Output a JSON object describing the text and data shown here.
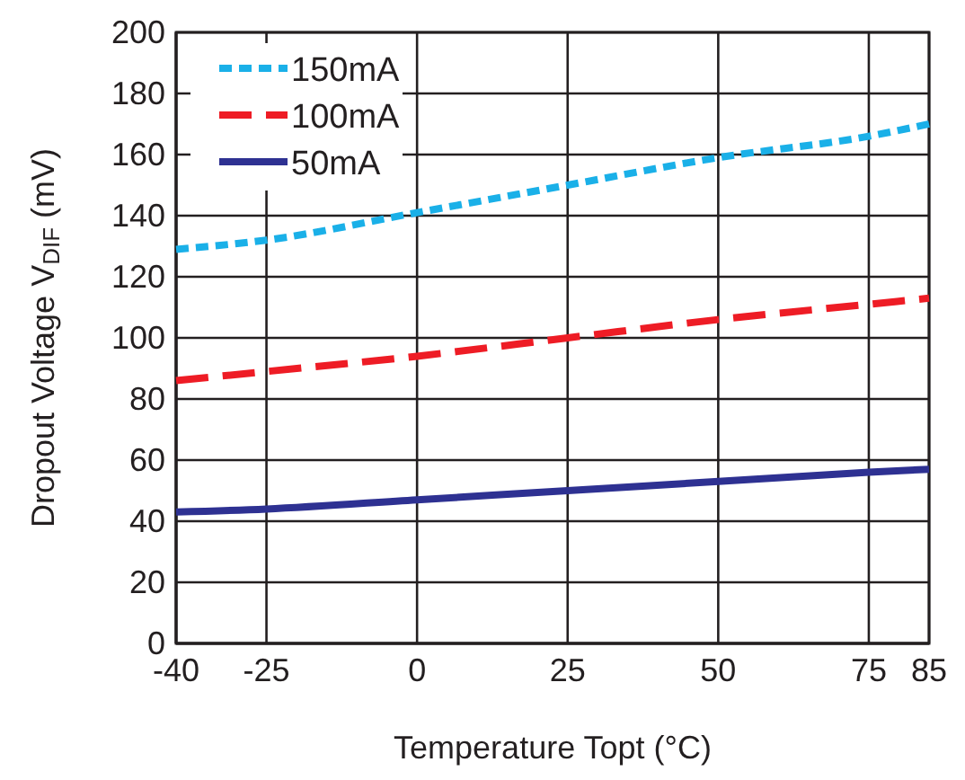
{
  "chart_data": {
    "type": "line",
    "xlabel": "Temperature Topt (°C)",
    "ylabel": "Dropout Voltage V$_{DIF}$ (mV)",
    "x": [
      -40,
      -25,
      0,
      25,
      50,
      75,
      85
    ],
    "series": [
      {
        "name": "150mA",
        "color": "#1ab0e8",
        "line_style": "dotted",
        "values": [
          129,
          132,
          141,
          150,
          159,
          166,
          170
        ]
      },
      {
        "name": "100mA",
        "color": "#ee1c25",
        "line_style": "dashed",
        "values": [
          86,
          89,
          94,
          100,
          106,
          111,
          113
        ]
      },
      {
        "name": "50mA",
        "color": "#2e3192",
        "line_style": "solid",
        "values": [
          43,
          44,
          47,
          50,
          53,
          56,
          57
        ]
      }
    ],
    "xlim": [
      -40,
      85
    ],
    "xticks": [
      -40,
      -25,
      0,
      25,
      50,
      75,
      85
    ],
    "ylim": [
      0,
      200
    ],
    "yticks": [
      0,
      20,
      40,
      60,
      80,
      100,
      120,
      140,
      160,
      180,
      200
    ],
    "grid": true,
    "legend": "top left",
    "marker": "none"
  }
}
